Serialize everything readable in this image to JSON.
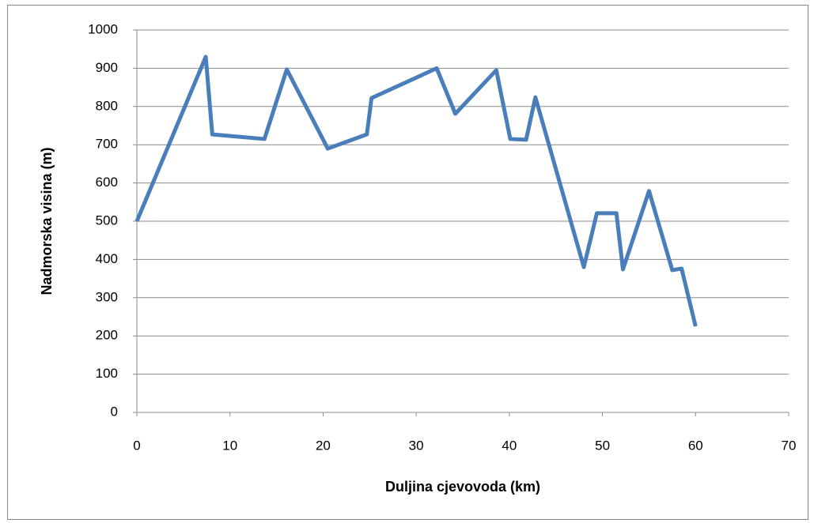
{
  "chart_data": {
    "type": "line",
    "xlabel": "Duljina cjevovoda (km)",
    "ylabel": "Nadmorska visina (m)",
    "x": [
      0,
      7.4,
      8.1,
      13.7,
      16.1,
      20.5,
      24.7,
      25.2,
      32.2,
      34.2,
      38.6,
      40.1,
      41.8,
      42.8,
      48.0,
      49.4,
      51.5,
      52.2,
      55.0,
      57.5,
      58.5,
      60.0
    ],
    "values": [
      500,
      930,
      727,
      715,
      897,
      690,
      727,
      822,
      900,
      781,
      895,
      715,
      713,
      824,
      380,
      521,
      521,
      374,
      579,
      372,
      376,
      225
    ],
    "color": "#4a7ebb",
    "xlim": [
      0,
      70
    ],
    "xticks": [
      0,
      10,
      20,
      30,
      40,
      50,
      60,
      70
    ],
    "ylim": [
      0,
      1000
    ],
    "yticks": [
      0,
      100,
      200,
      300,
      400,
      500,
      600,
      700,
      800,
      900,
      1000
    ],
    "grid": true
  }
}
